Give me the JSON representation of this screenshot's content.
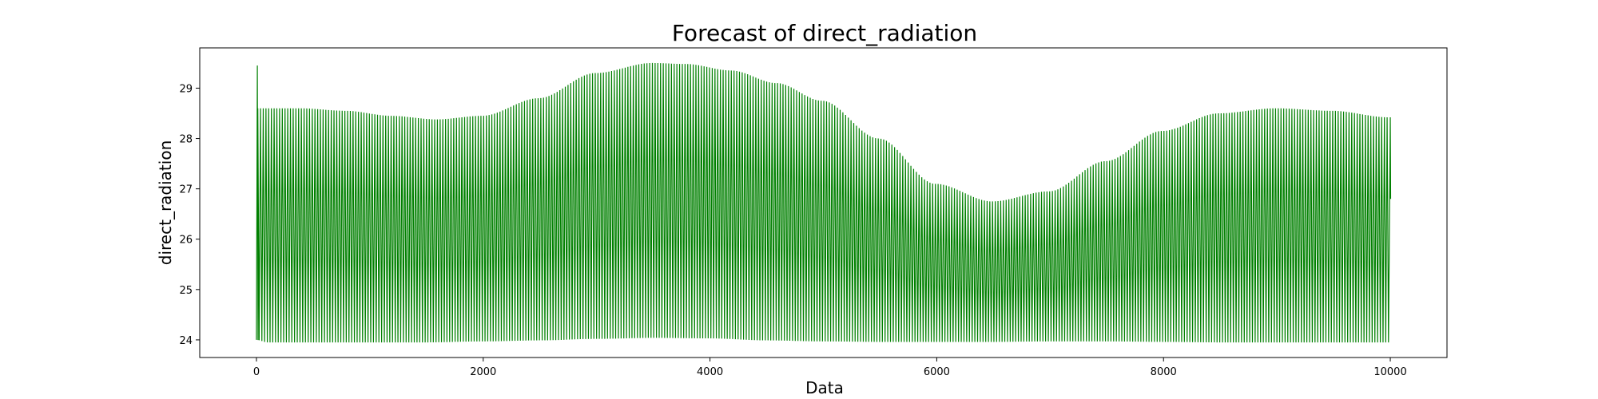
{
  "chart_data": {
    "type": "line",
    "title": "Forecast of direct_radiation",
    "xlabel": "Data",
    "ylabel": "direct_radiation",
    "xlim": [
      -500,
      10500
    ],
    "ylim": [
      23.65,
      29.8
    ],
    "xticks": [
      0,
      2000,
      4000,
      6000,
      8000,
      10000
    ],
    "yticks": [
      24,
      25,
      26,
      27,
      28,
      29
    ],
    "grid": false,
    "color": "#008000",
    "series": [
      {
        "x_start": 0,
        "x_end": 10000,
        "oscillation_period": 24,
        "initial_spike": 29.45,
        "upper_envelope": {
          "x": [
            0,
            100,
            400,
            800,
            1200,
            1600,
            2000,
            2500,
            3000,
            3500,
            3800,
            4200,
            4600,
            5000,
            5500,
            6000,
            6500,
            7000,
            7500,
            8000,
            8500,
            9000,
            9500,
            10000
          ],
          "y": [
            28.6,
            28.6,
            28.6,
            28.55,
            28.45,
            28.38,
            28.45,
            28.8,
            29.3,
            29.5,
            29.48,
            29.35,
            29.1,
            28.75,
            28.0,
            27.1,
            26.75,
            26.95,
            27.55,
            28.15,
            28.5,
            28.6,
            28.55,
            28.42
          ]
        },
        "lower_envelope": {
          "x": [
            0,
            100,
            500,
            1000,
            1500,
            2000,
            2500,
            3000,
            3500,
            4000,
            4500,
            5000,
            5500,
            6000,
            6500,
            7000,
            7500,
            8000,
            8500,
            9000,
            9500,
            10000
          ],
          "y": [
            24.0,
            23.95,
            23.95,
            23.95,
            23.95,
            23.97,
            23.99,
            24.02,
            24.04,
            24.03,
            23.99,
            23.97,
            23.96,
            23.96,
            23.96,
            23.97,
            23.97,
            23.96,
            23.95,
            23.95,
            23.95,
            23.95
          ]
        }
      }
    ]
  }
}
